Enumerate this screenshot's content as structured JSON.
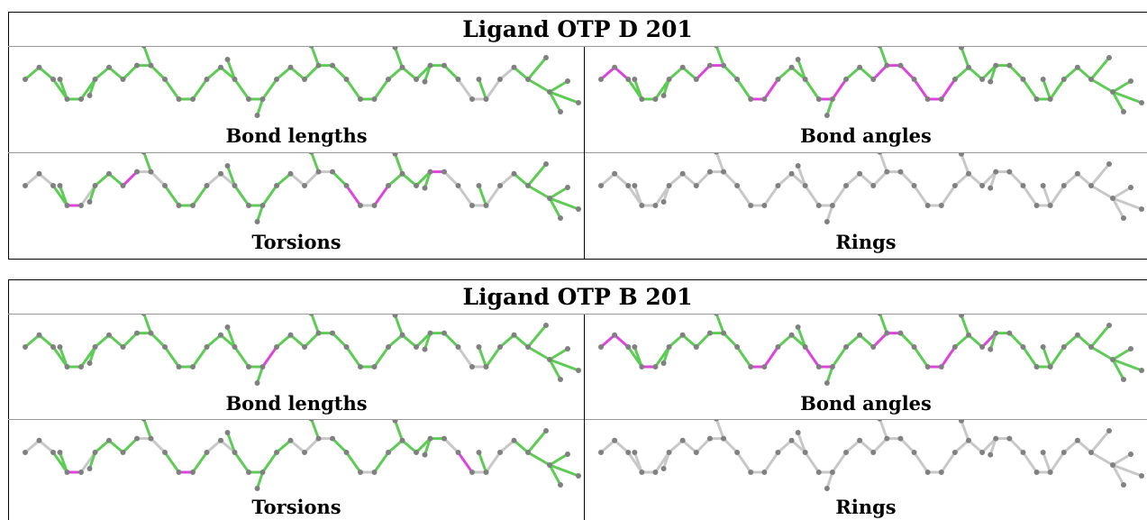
{
  "colors": {
    "ok_bond": "#5dcc55",
    "outlier_bond": "#dd44dd",
    "neutral_bond": "#c8c8c8",
    "atom": "#808080",
    "border": "#000000"
  },
  "blocks": [
    {
      "title": "Ligand OTP D 201",
      "panels": [
        {
          "label": "Bond lengths",
          "mode": "mostly_ok",
          "highlight_bonds": [],
          "gray_bonds": [
            31,
            32,
            33,
            34
          ]
        },
        {
          "label": "Bond angles",
          "mode": "mostly_ok",
          "highlight_bonds": [
            0,
            1,
            7,
            8,
            11,
            12,
            16,
            17,
            20,
            21,
            22,
            23,
            24,
            25
          ],
          "gray_bonds": []
        },
        {
          "label": "Torsions",
          "mode": "mostly_ok",
          "highlight_bonds": [
            3,
            7,
            23,
            25,
            29
          ],
          "gray_bonds": [
            0,
            1,
            4,
            8,
            9,
            13,
            14,
            19,
            20,
            21,
            24,
            30,
            31,
            32,
            33,
            34
          ]
        },
        {
          "label": "Rings",
          "mode": "all_gray",
          "highlight_bonds": [],
          "gray_bonds": []
        }
      ]
    },
    {
      "title": "Ligand OTP B 201",
      "panels": [
        {
          "label": "Bond lengths",
          "mode": "mostly_ok",
          "highlight_bonds": [
            17
          ],
          "gray_bonds": [
            31,
            32
          ]
        },
        {
          "label": "Bond angles",
          "mode": "mostly_ok",
          "highlight_bonds": [
            0,
            1,
            3,
            11,
            12,
            15,
            16,
            20,
            21,
            24,
            25,
            28
          ],
          "gray_bonds": []
        },
        {
          "label": "Torsions",
          "mode": "mostly_ok",
          "highlight_bonds": [
            3,
            11,
            31
          ],
          "gray_bonds": [
            0,
            1,
            4,
            8,
            9,
            13,
            14,
            19,
            20,
            21,
            24,
            30,
            32,
            33,
            34
          ]
        },
        {
          "label": "Rings",
          "mode": "all_gray",
          "highlight_bonds": [],
          "gray_bonds": []
        }
      ]
    }
  ]
}
